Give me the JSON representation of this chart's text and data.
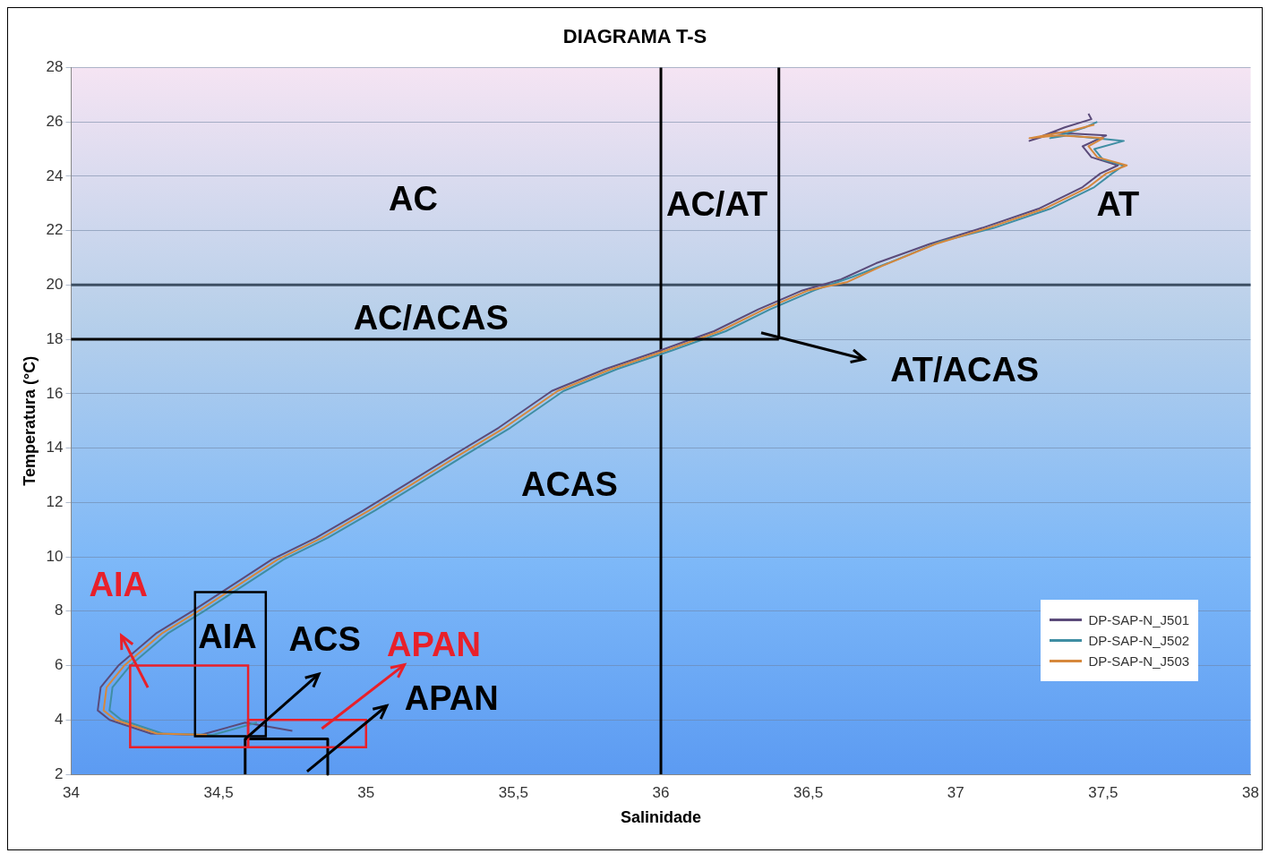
{
  "chart_data": {
    "type": "line",
    "title": "DIAGRAMA T-S",
    "xlabel": "Salinidade",
    "ylabel": "Temperatura (°C)",
    "xlim": [
      34,
      38
    ],
    "xticks": [
      34,
      {
        "value": 34.5,
        "label": "34,5"
      },
      35,
      {
        "value": 35.5,
        "label": "35,5"
      },
      36,
      {
        "value": 36.5,
        "label": "36,5"
      },
      37,
      {
        "value": 37.5,
        "label": "37,5"
      },
      38
    ],
    "ylim": [
      2,
      28
    ],
    "yticks": [
      2,
      4,
      6,
      8,
      10,
      12,
      14,
      16,
      18,
      20,
      22,
      24,
      26,
      28
    ],
    "grid": "y",
    "legend": "bottom right",
    "series": [
      {
        "name": "DP-SAP-N_J501",
        "color": "#5b4b7a",
        "x": [
          34.75,
          34.59,
          34.44,
          34.27,
          34.13,
          34.09,
          34.1,
          34.16,
          34.29,
          34.41,
          34.56,
          34.68,
          34.83,
          34.99,
          35.14,
          35.29,
          35.45,
          35.63,
          35.81,
          36.0,
          36.18,
          36.33,
          36.48,
          36.61,
          36.73,
          36.91,
          37.09,
          37.28,
          37.43,
          37.49,
          37.55,
          37.46,
          37.43,
          37.51,
          37.34,
          37.25,
          37.37,
          37.46,
          37.45
        ],
        "values": [
          3.6,
          3.9,
          3.45,
          3.5,
          4.0,
          4.35,
          5.2,
          6.0,
          7.2,
          8.0,
          9.05,
          9.9,
          10.7,
          11.7,
          12.7,
          13.7,
          14.75,
          16.1,
          16.9,
          17.6,
          18.3,
          19.1,
          19.8,
          20.2,
          20.8,
          21.5,
          22.1,
          22.8,
          23.6,
          24.1,
          24.4,
          24.7,
          25.1,
          25.5,
          25.6,
          25.3,
          25.8,
          26.1,
          26.3
        ]
      },
      {
        "name": "DP-SAP-N_J502",
        "color": "#3f8ea3",
        "x": [
          34.63,
          34.48,
          34.31,
          34.17,
          34.13,
          34.14,
          34.2,
          34.33,
          34.45,
          34.6,
          34.72,
          34.87,
          35.03,
          35.18,
          35.33,
          35.49,
          35.67,
          35.85,
          36.04,
          36.22,
          36.37,
          36.52,
          36.65,
          36.77,
          36.95,
          37.13,
          37.32,
          37.47,
          37.53,
          37.57,
          37.5,
          37.47,
          37.57,
          37.38,
          37.32,
          37.44,
          37.48
        ],
        "values": [
          3.9,
          3.45,
          3.5,
          4.0,
          4.35,
          5.2,
          6.0,
          7.2,
          8.0,
          9.05,
          9.9,
          10.7,
          11.7,
          12.7,
          13.7,
          14.75,
          16.1,
          16.9,
          17.6,
          18.3,
          19.1,
          19.8,
          20.3,
          20.8,
          21.6,
          22.1,
          22.8,
          23.6,
          24.1,
          24.4,
          24.6,
          25.0,
          25.3,
          25.5,
          25.4,
          25.8,
          26.0
        ]
      },
      {
        "name": "DP-SAP-N_J503",
        "color": "#d6883c",
        "x": [
          34.46,
          34.29,
          34.15,
          34.11,
          34.12,
          34.18,
          34.31,
          34.43,
          34.58,
          34.7,
          34.85,
          35.01,
          35.16,
          35.31,
          35.47,
          35.65,
          35.83,
          36.02,
          36.2,
          36.35,
          36.5,
          36.63,
          36.75,
          36.93,
          37.11,
          37.3,
          37.45,
          37.51,
          37.58,
          37.48,
          37.45,
          37.5,
          37.35,
          37.25,
          37.4,
          37.47
        ],
        "values": [
          3.45,
          3.5,
          4.0,
          4.35,
          5.2,
          6.0,
          7.2,
          8.0,
          9.05,
          9.9,
          10.7,
          11.7,
          12.7,
          13.7,
          14.75,
          16.1,
          16.9,
          17.6,
          18.3,
          19.1,
          19.8,
          20.1,
          20.7,
          21.5,
          22.1,
          22.8,
          23.6,
          24.1,
          24.4,
          24.7,
          25.1,
          25.4,
          25.5,
          25.4,
          25.7,
          25.9
        ]
      },
      {
        "color": "#000000",
        "x": [
          34,
          36.4
        ],
        "values": [
          18,
          18
        ]
      },
      {
        "color": "#000000",
        "x": [
          36.4,
          36.4
        ],
        "values": [
          18,
          28
        ]
      },
      {
        "color": "#000000",
        "x": [
          34.59,
          34.59,
          34.87,
          34.87
        ],
        "values": [
          2,
          3.3,
          3.3,
          2
        ]
      }
    ],
    "ref_lines": [
      {
        "axis": "y",
        "value": 20,
        "color": "#3d4f63"
      },
      {
        "axis": "x",
        "value": 36,
        "color": "#000000"
      }
    ],
    "annotations": [
      "AC",
      "AC/AT",
      "AT",
      "AC/ACAS",
      "AT/ACAS",
      "ACAS",
      "AIA",
      "AIA",
      {
        "text": "ACS",
        "x": 34.59,
        "y": 3.3
      },
      "APAN",
      "APAN"
    ]
  }
}
